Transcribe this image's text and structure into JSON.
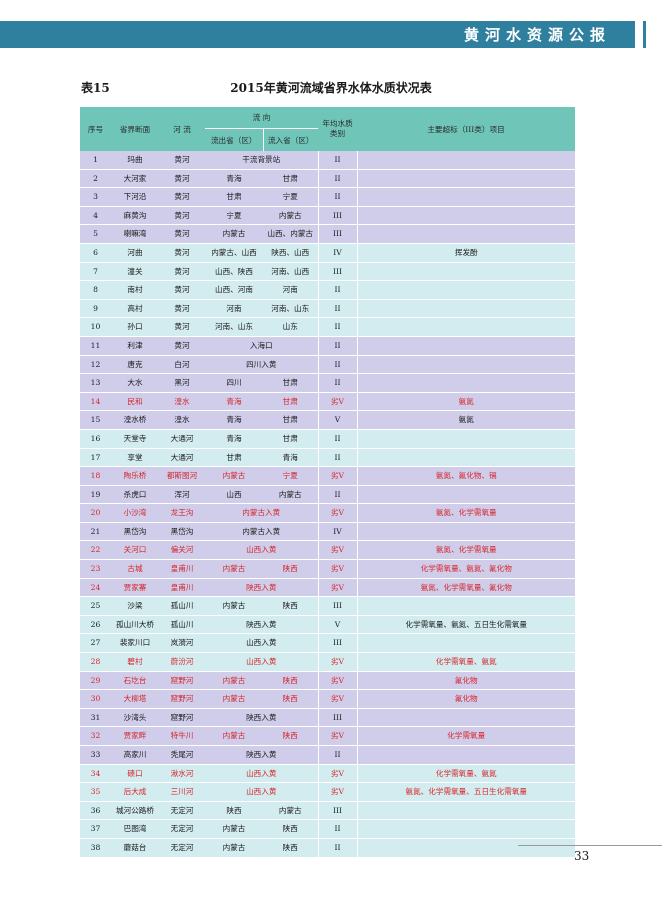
{
  "header": {
    "title": "黄河水资源公报"
  },
  "caption": {
    "label": "表15",
    "title": "2015年黄河流域省界水体水质状况表"
  },
  "table": {
    "headers": {
      "no": "序号",
      "section": "省界断面",
      "river": "河 流",
      "flow_group": "流 向",
      "flow_out": "流出省（区）",
      "flow_in": "流入省（区）",
      "grade": "年均水质类别",
      "exceed": "主要超标（III类）项目"
    },
    "rows": [
      {
        "no": "1",
        "section": "玛曲",
        "river": "黄河",
        "flow": "干流背景站",
        "grade": "II",
        "exceed": ""
      },
      {
        "no": "2",
        "section": "大河家",
        "river": "黄河",
        "out": "青海",
        "in": "甘肃",
        "grade": "II",
        "exceed": ""
      },
      {
        "no": "3",
        "section": "下河沿",
        "river": "黄河",
        "out": "甘肃",
        "in": "宁夏",
        "grade": "II",
        "exceed": ""
      },
      {
        "no": "4",
        "section": "麻黄沟",
        "river": "黄河",
        "out": "宁夏",
        "in": "内蒙古",
        "grade": "III",
        "exceed": ""
      },
      {
        "no": "5",
        "section": "喇嘛湾",
        "river": "黄河",
        "out": "内蒙古",
        "in": "山西、内蒙古",
        "grade": "III",
        "exceed": ""
      },
      {
        "no": "6",
        "section": "河曲",
        "river": "黄河",
        "out": "内蒙古、山西",
        "in": "陕西、山西",
        "grade": "IV",
        "exceed": "挥发酚"
      },
      {
        "no": "7",
        "section": "潼关",
        "river": "黄河",
        "out": "山西、陕西",
        "in": "河南、山西",
        "grade": "III",
        "exceed": ""
      },
      {
        "no": "8",
        "section": "南村",
        "river": "黄河",
        "out": "山西、河南",
        "in": "河南",
        "grade": "II",
        "exceed": ""
      },
      {
        "no": "9",
        "section": "高村",
        "river": "黄河",
        "out": "河南",
        "in": "河南、山东",
        "grade": "II",
        "exceed": ""
      },
      {
        "no": "10",
        "section": "孙口",
        "river": "黄河",
        "out": "河南、山东",
        "in": "山东",
        "grade": "II",
        "exceed": ""
      },
      {
        "no": "11",
        "section": "利津",
        "river": "黄河",
        "flow": "入海口",
        "grade": "II",
        "exceed": ""
      },
      {
        "no": "12",
        "section": "唐克",
        "river": "白河",
        "flow": "四川入黄",
        "grade": "II",
        "exceed": ""
      },
      {
        "no": "13",
        "section": "大水",
        "river": "黑河",
        "out": "四川",
        "in": "甘肃",
        "grade": "II",
        "exceed": ""
      },
      {
        "no": "14",
        "section": "民和",
        "river": "湟水",
        "out": "青海",
        "in": "甘肃",
        "grade": "劣V",
        "exceed": "氨氮",
        "red": true
      },
      {
        "no": "15",
        "section": "湟水桥",
        "river": "湟水",
        "out": "青海",
        "in": "甘肃",
        "grade": "V",
        "exceed": "氨氮"
      },
      {
        "no": "16",
        "section": "天堂寺",
        "river": "大通河",
        "out": "青海",
        "in": "甘肃",
        "grade": "II",
        "exceed": ""
      },
      {
        "no": "17",
        "section": "享堂",
        "river": "大通河",
        "out": "甘肃",
        "in": "青海",
        "grade": "II",
        "exceed": ""
      },
      {
        "no": "18",
        "section": "陶乐桥",
        "river": "都斯图河",
        "out": "内蒙古",
        "in": "宁夏",
        "grade": "劣V",
        "exceed": "氨氮、氟化物、镉",
        "red": true
      },
      {
        "no": "19",
        "section": "杀虎口",
        "river": "浑河",
        "out": "山西",
        "in": "内蒙古",
        "grade": "II",
        "exceed": ""
      },
      {
        "no": "20",
        "section": "小沙湾",
        "river": "龙王沟",
        "flow": "内蒙古入黄",
        "grade": "劣V",
        "exceed": "氨氮、化学需氧量",
        "red": true
      },
      {
        "no": "21",
        "section": "黑岱沟",
        "river": "黑岱沟",
        "flow": "内蒙古入黄",
        "grade": "IV",
        "exceed": ""
      },
      {
        "no": "22",
        "section": "关河口",
        "river": "偏关河",
        "flow": "山西入黄",
        "grade": "劣V",
        "exceed": "氨氮、化学需氧量",
        "red": true
      },
      {
        "no": "23",
        "section": "古城",
        "river": "皇甫川",
        "out": "内蒙古",
        "in": "陕西",
        "grade": "劣V",
        "exceed": "化学需氧量、氨氮、氟化物",
        "red": true
      },
      {
        "no": "24",
        "section": "贾家寨",
        "river": "皇甫川",
        "flow": "陕西入黄",
        "grade": "劣V",
        "exceed": "氨氮、化学需氧量、氟化物",
        "red": true
      },
      {
        "no": "25",
        "section": "沙梁",
        "river": "孤山川",
        "out": "内蒙古",
        "in": "陕西",
        "grade": "III",
        "exceed": ""
      },
      {
        "no": "26",
        "section": "孤山川大桥",
        "river": "孤山川",
        "flow": "陕西入黄",
        "grade": "V",
        "exceed": "化学需氧量、氨氮、五日生化需氧量"
      },
      {
        "no": "27",
        "section": "裴家川口",
        "river": "岚漪河",
        "flow": "山西入黄",
        "grade": "III",
        "exceed": ""
      },
      {
        "no": "28",
        "section": "碧村",
        "river": "蔚汾河",
        "flow": "山西入黄",
        "grade": "劣V",
        "exceed": "化学需氧量、氨氮",
        "red": true
      },
      {
        "no": "29",
        "section": "石圪台",
        "river": "窟野河",
        "out": "内蒙古",
        "in": "陕西",
        "grade": "劣V",
        "exceed": "氟化物",
        "red": true
      },
      {
        "no": "30",
        "section": "大柳塔",
        "river": "窟野河",
        "out": "内蒙古",
        "in": "陕西",
        "grade": "劣V",
        "exceed": "氟化物",
        "red": true
      },
      {
        "no": "31",
        "section": "沙湾头",
        "river": "窟野河",
        "flow": "陕西入黄",
        "grade": "III",
        "exceed": ""
      },
      {
        "no": "32",
        "section": "贾家畔",
        "river": "特牛川",
        "out": "内蒙古",
        "in": "陕西",
        "grade": "劣V",
        "exceed": "化学需氧量",
        "red": true
      },
      {
        "no": "33",
        "section": "高家川",
        "river": "秃尾河",
        "flow": "陕西入黄",
        "grade": "II",
        "exceed": ""
      },
      {
        "no": "34",
        "section": "碛口",
        "river": "湫水河",
        "flow": "山西入黄",
        "grade": "劣V",
        "exceed": "化学需氧量、氨氮",
        "red": true
      },
      {
        "no": "35",
        "section": "后大成",
        "river": "三川河",
        "flow": "山西入黄",
        "grade": "劣V",
        "exceed": "氨氮、化学需氧量、五日生化需氧量",
        "red": true
      },
      {
        "no": "36",
        "section": "城河公路桥",
        "river": "无定河",
        "out": "陕西",
        "in": "内蒙古",
        "grade": "III",
        "exceed": ""
      },
      {
        "no": "37",
        "section": "巴图湾",
        "river": "无定河",
        "out": "内蒙古",
        "in": "陕西",
        "grade": "II",
        "exceed": ""
      },
      {
        "no": "38",
        "section": "蘑菇台",
        "river": "无定河",
        "out": "内蒙古",
        "in": "陕西",
        "grade": "II",
        "exceed": ""
      }
    ]
  },
  "page": {
    "number": "33"
  },
  "colors": {
    "header_band": "#2f7f9f",
    "table_header": "#6ec5b8",
    "band_purple": "#cfcdea",
    "band_cyan": "#d3ecef",
    "red_text": "#d6252b"
  }
}
